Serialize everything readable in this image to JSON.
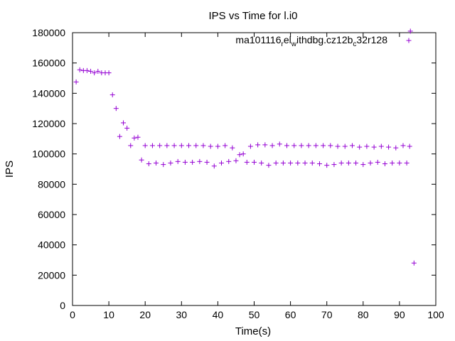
{
  "chart_data": {
    "type": "scatter",
    "title": "IPS vs Time for l.i0",
    "xlabel": "Time(s)",
    "ylabel": "IPS",
    "xlim": [
      0,
      100
    ],
    "ylim": [
      0,
      180000
    ],
    "xticks": [
      0,
      10,
      20,
      30,
      40,
      50,
      60,
      70,
      80,
      90,
      100
    ],
    "yticks": [
      0,
      20000,
      40000,
      60000,
      80000,
      100000,
      120000,
      140000,
      160000,
      180000
    ],
    "grid": false,
    "legend": "top-right",
    "marker": "plus",
    "series": [
      {
        "name": "ma101116_rel_withdbg.cz12b_c32r128",
        "legend_text": {
          "parts": [
            {
              "text": "ma101116",
              "style": "normal"
            },
            {
              "text": "r",
              "style": "sub"
            },
            {
              "text": "el",
              "style": "normal"
            },
            {
              "text": "w",
              "style": "sub"
            },
            {
              "text": "ithdbg.cz12b",
              "style": "normal"
            },
            {
              "text": "c",
              "style": "sub"
            },
            {
              "text": "32r128",
              "style": "normal"
            }
          ]
        },
        "color": "#9400d3",
        "points": [
          [
            1,
            147500
          ],
          [
            2,
            155500
          ],
          [
            3,
            155000
          ],
          [
            4,
            155000
          ],
          [
            5,
            154500
          ],
          [
            6,
            153500
          ],
          [
            7,
            154500
          ],
          [
            8,
            153500
          ],
          [
            9,
            153500
          ],
          [
            10,
            153500
          ],
          [
            11,
            139000
          ],
          [
            12,
            130000
          ],
          [
            13,
            111500
          ],
          [
            14,
            120500
          ],
          [
            15,
            117000
          ],
          [
            16,
            105500
          ],
          [
            17,
            110500
          ],
          [
            18,
            111000
          ],
          [
            19,
            96000
          ],
          [
            20,
            105500
          ],
          [
            21,
            93500
          ],
          [
            22,
            105500
          ],
          [
            23,
            94000
          ],
          [
            24,
            105500
          ],
          [
            25,
            93000
          ],
          [
            26,
            105500
          ],
          [
            27,
            94000
          ],
          [
            28,
            105500
          ],
          [
            29,
            95000
          ],
          [
            30,
            105500
          ],
          [
            31,
            94500
          ],
          [
            32,
            105500
          ],
          [
            33,
            94500
          ],
          [
            34,
            105500
          ],
          [
            35,
            95000
          ],
          [
            36,
            105500
          ],
          [
            37,
            94500
          ],
          [
            38,
            105000
          ],
          [
            39,
            92000
          ],
          [
            40,
            105000
          ],
          [
            41,
            94000
          ],
          [
            42,
            105500
          ],
          [
            43,
            95000
          ],
          [
            44,
            104000
          ],
          [
            45,
            95500
          ],
          [
            46,
            99500
          ],
          [
            47,
            100000
          ],
          [
            48,
            94500
          ],
          [
            49,
            105000
          ],
          [
            50,
            94500
          ],
          [
            51,
            106000
          ],
          [
            52,
            94000
          ],
          [
            53,
            106000
          ],
          [
            54,
            92500
          ],
          [
            55,
            105500
          ],
          [
            56,
            94000
          ],
          [
            57,
            106500
          ],
          [
            58,
            94000
          ],
          [
            59,
            105500
          ],
          [
            60,
            94000
          ],
          [
            61,
            105500
          ],
          [
            62,
            94000
          ],
          [
            63,
            105500
          ],
          [
            64,
            94000
          ],
          [
            65,
            105500
          ],
          [
            66,
            94000
          ],
          [
            67,
            105500
          ],
          [
            68,
            93500
          ],
          [
            69,
            105500
          ],
          [
            70,
            92500
          ],
          [
            71,
            105500
          ],
          [
            72,
            93000
          ],
          [
            73,
            105000
          ],
          [
            74,
            94000
          ],
          [
            75,
            105000
          ],
          [
            76,
            94000
          ],
          [
            77,
            105500
          ],
          [
            78,
            94000
          ],
          [
            79,
            104500
          ],
          [
            80,
            93000
          ],
          [
            81,
            105000
          ],
          [
            82,
            94000
          ],
          [
            83,
            104500
          ],
          [
            84,
            94500
          ],
          [
            85,
            105000
          ],
          [
            86,
            93500
          ],
          [
            87,
            104500
          ],
          [
            88,
            94000
          ],
          [
            89,
            104000
          ],
          [
            90,
            94000
          ],
          [
            91,
            105500
          ],
          [
            92,
            94000
          ],
          [
            92.8,
            105000
          ],
          [
            93,
            181000
          ],
          [
            94,
            28000
          ]
        ]
      }
    ]
  }
}
